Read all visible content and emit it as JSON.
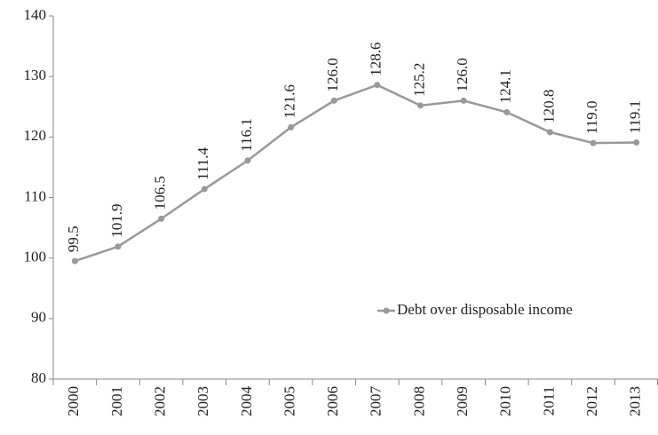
{
  "chart_data": {
    "type": "line",
    "categories": [
      "2000",
      "2001",
      "2002",
      "2003",
      "2004",
      "2005",
      "2006",
      "2007",
      "2008",
      "2009",
      "2010",
      "2011",
      "2012",
      "2013"
    ],
    "series": [
      {
        "name": "Debt over disposable income",
        "color": "#999999",
        "values": [
          99.5,
          101.9,
          106.5,
          111.4,
          116.1,
          121.6,
          126.0,
          128.6,
          125.2,
          126.0,
          124.1,
          120.8,
          119.0,
          119.1
        ],
        "value_labels": [
          "99.5",
          "101.9",
          "106.5",
          "111.4",
          "116.1",
          "121.6",
          "126.0",
          "128.6",
          "125.2",
          "126.0",
          "124.1",
          "120.8",
          "119.0",
          "119.1"
        ]
      }
    ],
    "ylim": [
      80,
      140
    ],
    "yticks": [
      80,
      90,
      100,
      110,
      120,
      130,
      140
    ],
    "grid": false,
    "legend": "right"
  }
}
